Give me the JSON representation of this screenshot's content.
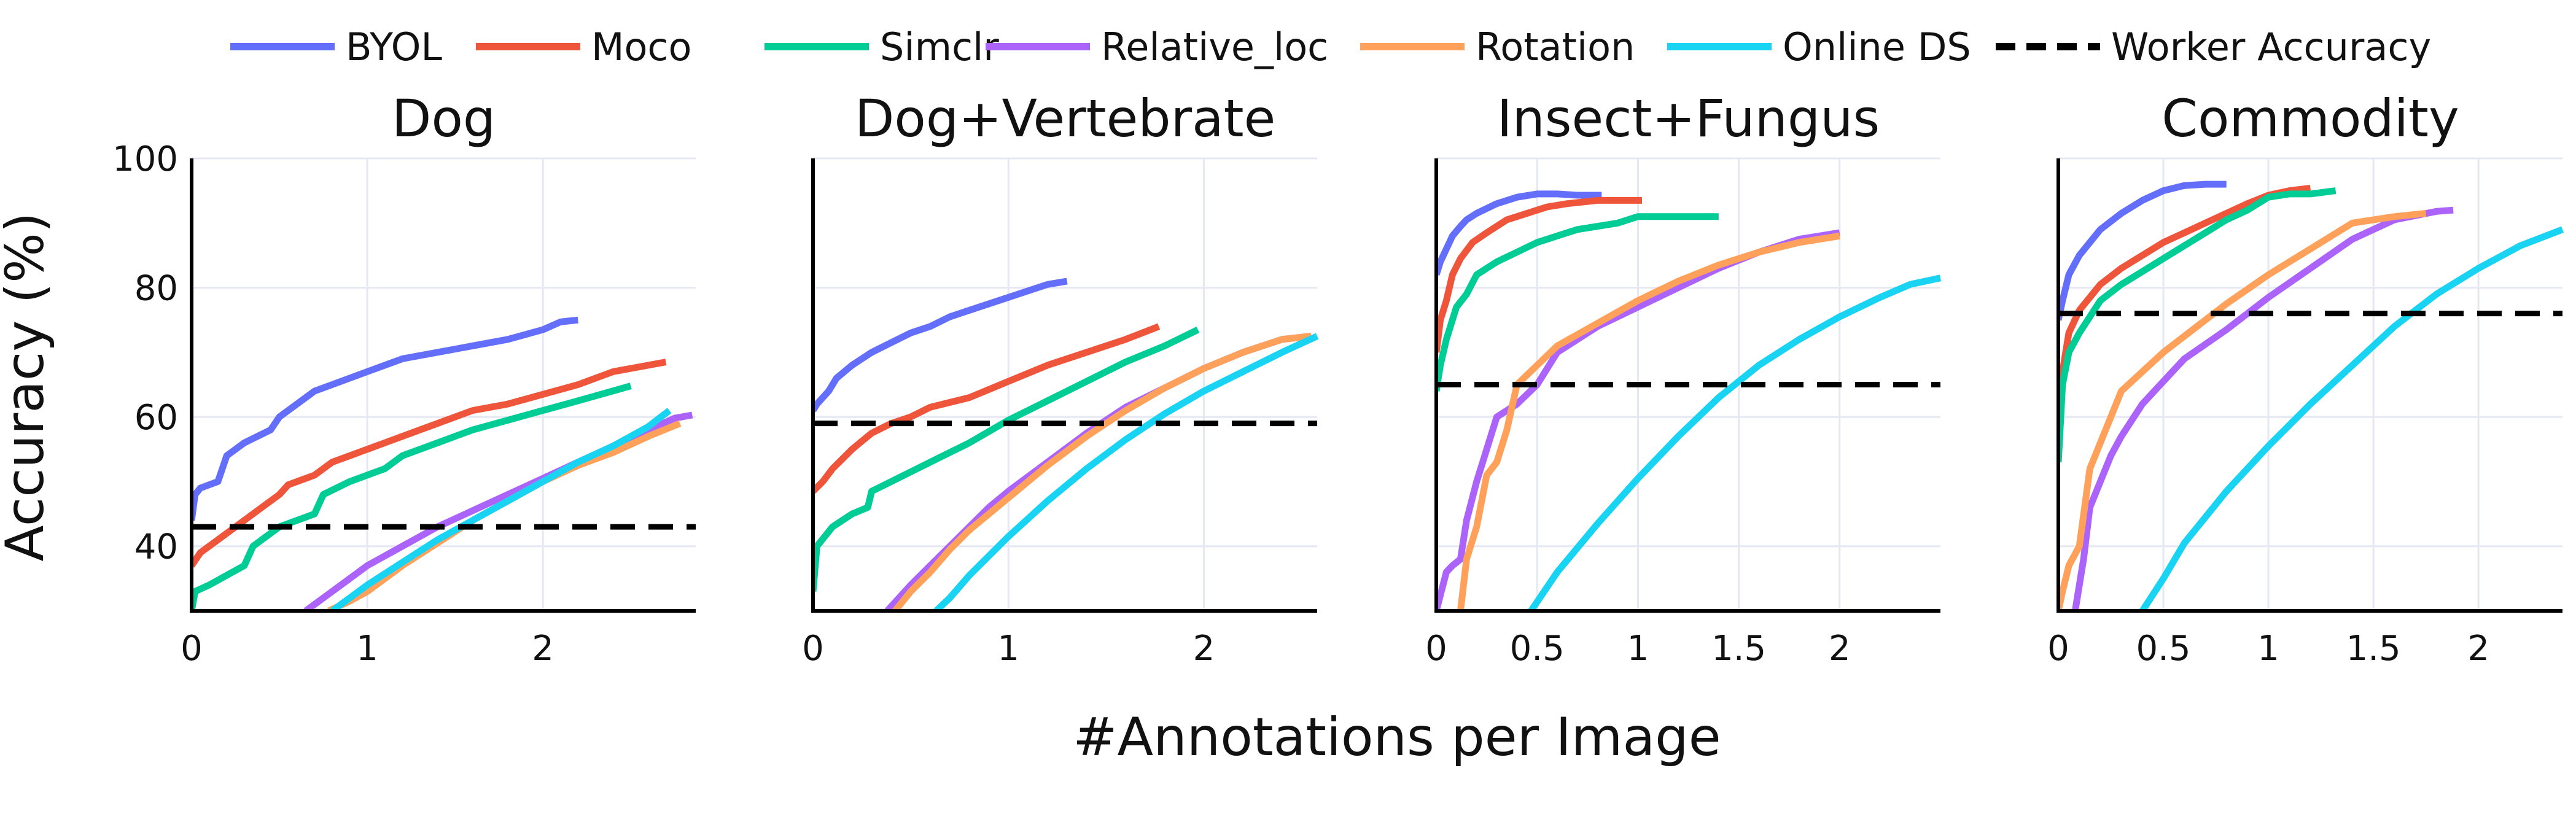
{
  "figure": {
    "ylabel": "Accuracy (%)",
    "xlabel": "#Annotations per Image"
  },
  "legend": [
    {
      "label": "BYOL",
      "color": "#636EFA",
      "dash": false
    },
    {
      "label": "Moco",
      "color": "#EF553B",
      "dash": false
    },
    {
      "label": "Simclr",
      "color": "#00CC96",
      "dash": false
    },
    {
      "label": "Relative_loc",
      "color": "#AB63FA",
      "dash": false
    },
    {
      "label": "Rotation",
      "color": "#FFA15A",
      "dash": false
    },
    {
      "label": "Online DS",
      "color": "#19D3F3",
      "dash": false
    },
    {
      "label": "Worker Accuracy",
      "color": "#000000",
      "dash": true
    }
  ],
  "chart_data": [
    {
      "type": "line",
      "title": "Dog",
      "xlim": [
        0,
        2.87
      ],
      "ylim": [
        30,
        100
      ],
      "xticks": [
        {
          "v": 0,
          "label": "0"
        },
        {
          "v": 1,
          "label": "1"
        },
        {
          "v": 2,
          "label": "2"
        }
      ],
      "yticks": [
        {
          "v": 40,
          "label": "40"
        },
        {
          "v": 60,
          "label": "60"
        },
        {
          "v": 80,
          "label": "80"
        },
        {
          "v": 100,
          "label": "100"
        }
      ],
      "show_ytick_labels": true,
      "worker_accuracy": 43,
      "series": [
        {
          "name": "BYOL",
          "x": [
            0,
            0.02,
            0.05,
            0.15,
            0.2,
            0.3,
            0.45,
            0.5,
            0.6,
            0.7,
            0.8,
            1.0,
            1.2,
            1.5,
            1.8,
            2.0,
            2.1,
            2.2
          ],
          "y": [
            44,
            48,
            49,
            50,
            54,
            56,
            58,
            60,
            62,
            64,
            65,
            67,
            69,
            70.5,
            72,
            73.5,
            74.7,
            75
          ]
        },
        {
          "name": "Moco",
          "x": [
            0,
            0.05,
            0.2,
            0.3,
            0.4,
            0.5,
            0.55,
            0.7,
            0.8,
            1.0,
            1.2,
            1.4,
            1.6,
            1.8,
            2.0,
            2.2,
            2.4,
            2.6,
            2.7
          ],
          "y": [
            37,
            39,
            42,
            44,
            46,
            48,
            49.5,
            51,
            53,
            55,
            57,
            59,
            61,
            62,
            63.5,
            65,
            67,
            68,
            68.5
          ]
        },
        {
          "name": "Simclr",
          "x": [
            0,
            0.02,
            0.1,
            0.3,
            0.35,
            0.5,
            0.7,
            0.75,
            0.9,
            1.1,
            1.2,
            1.4,
            1.6,
            1.8,
            2.0,
            2.2,
            2.5
          ],
          "y": [
            30,
            33,
            34,
            37,
            40,
            43,
            45,
            48,
            50,
            52,
            54,
            56,
            58,
            59.5,
            61,
            62.5,
            64.8
          ]
        },
        {
          "name": "Relative_loc",
          "x": [
            0.65,
            0.8,
            1.0,
            1.2,
            1.4,
            1.6,
            1.8,
            2.0,
            2.2,
            2.4,
            2.6,
            2.75,
            2.85
          ],
          "y": [
            30,
            33,
            37,
            40,
            43,
            45.5,
            48,
            50.5,
            53,
            55.5,
            58,
            59.8,
            60.3
          ]
        },
        {
          "name": "Rotation",
          "x": [
            0.78,
            0.9,
            1.0,
            1.2,
            1.4,
            1.6,
            1.8,
            2.0,
            2.2,
            2.4,
            2.6,
            2.78
          ],
          "y": [
            30,
            31.5,
            33,
            37,
            40.5,
            44,
            47,
            50,
            52.5,
            54.5,
            57,
            59
          ]
        },
        {
          "name": "Online DS",
          "x": [
            0.8,
            1.0,
            1.2,
            1.4,
            1.6,
            1.8,
            2.0,
            2.2,
            2.4,
            2.6,
            2.72
          ],
          "y": [
            30,
            34,
            37.5,
            41,
            44,
            47,
            50,
            53,
            55.5,
            58.5,
            61
          ]
        }
      ]
    },
    {
      "type": "line",
      "title": "Dog+Vertebrate",
      "xlim": [
        0,
        2.58
      ],
      "ylim": [
        30,
        100
      ],
      "xticks": [
        {
          "v": 0,
          "label": "0"
        },
        {
          "v": 1,
          "label": "1"
        },
        {
          "v": 2,
          "label": "2"
        }
      ],
      "yticks": [
        {
          "v": 40,
          "label": ""
        },
        {
          "v": 60,
          "label": ""
        },
        {
          "v": 80,
          "label": ""
        },
        {
          "v": 100,
          "label": ""
        }
      ],
      "show_ytick_labels": false,
      "worker_accuracy": 59,
      "series": [
        {
          "name": "BYOL",
          "x": [
            0,
            0.02,
            0.08,
            0.12,
            0.2,
            0.3,
            0.4,
            0.5,
            0.6,
            0.7,
            0.8,
            0.9,
            1.0,
            1.1,
            1.2,
            1.3
          ],
          "y": [
            61,
            62,
            64,
            66,
            68,
            70,
            71.5,
            73,
            74,
            75.5,
            76.5,
            77.5,
            78.5,
            79.5,
            80.5,
            81
          ]
        },
        {
          "name": "Moco",
          "x": [
            0,
            0.05,
            0.1,
            0.2,
            0.3,
            0.4,
            0.5,
            0.6,
            0.8,
            1.0,
            1.2,
            1.4,
            1.6,
            1.77
          ],
          "y": [
            48.5,
            50,
            52,
            55,
            57.5,
            59,
            60,
            61.5,
            63,
            65.5,
            68,
            70,
            72,
            74
          ]
        },
        {
          "name": "Simclr",
          "x": [
            0,
            0.02,
            0.1,
            0.2,
            0.28,
            0.3,
            0.4,
            0.5,
            0.6,
            0.8,
            1.0,
            1.2,
            1.4,
            1.6,
            1.8,
            1.97
          ],
          "y": [
            33,
            40,
            43,
            45,
            46,
            48.5,
            50,
            51.5,
            53,
            56,
            59.5,
            62.5,
            65.5,
            68.5,
            71,
            73.5
          ]
        },
        {
          "name": "Relative_loc",
          "x": [
            0.38,
            0.5,
            0.6,
            0.7,
            0.8,
            0.9,
            1.0,
            1.2,
            1.4,
            1.6,
            1.8,
            2.0,
            2.2,
            2.4,
            2.55
          ],
          "y": [
            30,
            34,
            37,
            40,
            43,
            46,
            48.5,
            53,
            57.5,
            61.5,
            64.5,
            67.5,
            70,
            72,
            72.5
          ]
        },
        {
          "name": "Rotation",
          "x": [
            0.42,
            0.5,
            0.6,
            0.7,
            0.8,
            0.9,
            1.0,
            1.2,
            1.4,
            1.6,
            1.8,
            2.0,
            2.2,
            2.4,
            2.55
          ],
          "y": [
            30,
            33,
            36,
            39.5,
            42.5,
            45,
            47.5,
            52.5,
            57,
            61,
            64.5,
            67.5,
            70,
            72,
            72.5
          ]
        },
        {
          "name": "Online DS",
          "x": [
            0.63,
            0.7,
            0.8,
            0.9,
            1.0,
            1.2,
            1.4,
            1.6,
            1.8,
            2.0,
            2.2,
            2.4,
            2.58
          ],
          "y": [
            30,
            32,
            35.5,
            38.5,
            41.5,
            47,
            52,
            56.5,
            60.5,
            64,
            67,
            70,
            72.5
          ]
        }
      ]
    },
    {
      "type": "line",
      "title": "Insect+Fungus",
      "xlim": [
        0,
        2.5
      ],
      "ylim": [
        30,
        100
      ],
      "xticks": [
        {
          "v": 0,
          "label": "0"
        },
        {
          "v": 0.5,
          "label": "0.5"
        },
        {
          "v": 1,
          "label": "1"
        },
        {
          "v": 1.5,
          "label": "1.5"
        },
        {
          "v": 2,
          "label": "2"
        }
      ],
      "yticks": [
        {
          "v": 40,
          "label": ""
        },
        {
          "v": 60,
          "label": ""
        },
        {
          "v": 80,
          "label": ""
        },
        {
          "v": 100,
          "label": ""
        }
      ],
      "show_ytick_labels": false,
      "worker_accuracy": 65,
      "series": [
        {
          "name": "BYOL",
          "x": [
            0,
            0.02,
            0.05,
            0.08,
            0.12,
            0.15,
            0.2,
            0.3,
            0.4,
            0.5,
            0.6,
            0.7,
            0.82
          ],
          "y": [
            82,
            84,
            86,
            88,
            89.5,
            90.5,
            91.5,
            93,
            94,
            94.5,
            94.5,
            94.3,
            94.3
          ]
        },
        {
          "name": "Moco",
          "x": [
            0,
            0.02,
            0.05,
            0.08,
            0.12,
            0.18,
            0.25,
            0.35,
            0.45,
            0.55,
            0.65,
            0.8,
            0.9,
            1.02
          ],
          "y": [
            70,
            75,
            78,
            82,
            84.5,
            87,
            88.5,
            90.5,
            91.5,
            92.5,
            93,
            93.5,
            93.5,
            93.5
          ]
        },
        {
          "name": "Simclr",
          "x": [
            0,
            0.02,
            0.05,
            0.1,
            0.15,
            0.2,
            0.3,
            0.4,
            0.5,
            0.6,
            0.7,
            0.8,
            0.9,
            1.0,
            1.2,
            1.4
          ],
          "y": [
            64,
            68,
            72,
            77,
            79,
            82,
            84,
            85.5,
            87,
            88,
            89,
            89.5,
            90,
            91,
            91,
            91
          ]
        },
        {
          "name": "Relative_loc",
          "x": [
            0,
            0.05,
            0.08,
            0.12,
            0.15,
            0.2,
            0.25,
            0.3,
            0.4,
            0.5,
            0.6,
            0.8,
            1.0,
            1.2,
            1.4,
            1.6,
            1.8,
            2.0
          ],
          "y": [
            30,
            36,
            37,
            38,
            44,
            50,
            55,
            60,
            62,
            65,
            70,
            74,
            77,
            80,
            83,
            85.5,
            87.5,
            88.5
          ]
        },
        {
          "name": "Rotation",
          "x": [
            0.12,
            0.15,
            0.2,
            0.25,
            0.3,
            0.35,
            0.4,
            0.5,
            0.6,
            0.8,
            1.0,
            1.2,
            1.4,
            1.6,
            1.8,
            2.0
          ],
          "y": [
            30,
            38,
            43,
            51,
            53,
            58,
            65,
            68,
            71,
            74.5,
            78,
            81,
            83.5,
            85.5,
            87,
            88
          ]
        },
        {
          "name": "Online DS",
          "x": [
            0.47,
            0.6,
            0.8,
            1.0,
            1.2,
            1.4,
            1.6,
            1.8,
            2.0,
            2.2,
            2.35,
            2.5
          ],
          "y": [
            30,
            36,
            43.5,
            50.5,
            57,
            63,
            68,
            72,
            75.5,
            78.5,
            80.5,
            81.5
          ]
        }
      ]
    },
    {
      "type": "line",
      "title": "Commodity",
      "xlim": [
        0,
        2.4
      ],
      "ylim": [
        30,
        100
      ],
      "xticks": [
        {
          "v": 0,
          "label": "0"
        },
        {
          "v": 0.5,
          "label": "0.5"
        },
        {
          "v": 1,
          "label": "1"
        },
        {
          "v": 1.5,
          "label": "1.5"
        },
        {
          "v": 2,
          "label": "2"
        }
      ],
      "yticks": [
        {
          "v": 40,
          "label": ""
        },
        {
          "v": 60,
          "label": ""
        },
        {
          "v": 80,
          "label": ""
        },
        {
          "v": 100,
          "label": ""
        }
      ],
      "show_ytick_labels": false,
      "worker_accuracy": 76,
      "series": [
        {
          "name": "BYOL",
          "x": [
            0,
            0.02,
            0.05,
            0.1,
            0.15,
            0.2,
            0.3,
            0.4,
            0.5,
            0.6,
            0.7,
            0.8
          ],
          "y": [
            75,
            78,
            82,
            85,
            87,
            89,
            91.5,
            93.5,
            95,
            95.8,
            96,
            96
          ]
        },
        {
          "name": "Moco",
          "x": [
            0,
            0.02,
            0.05,
            0.1,
            0.15,
            0.2,
            0.3,
            0.4,
            0.5,
            0.6,
            0.7,
            0.8,
            0.9,
            1.0,
            1.1,
            1.2
          ],
          "y": [
            63,
            67,
            73,
            76.5,
            78.5,
            80.5,
            83,
            85,
            87,
            88.5,
            90,
            91.5,
            93,
            94.3,
            95,
            95.4
          ]
        },
        {
          "name": "Simclr",
          "x": [
            0,
            0.02,
            0.05,
            0.1,
            0.15,
            0.2,
            0.3,
            0.4,
            0.5,
            0.6,
            0.7,
            0.8,
            0.9,
            1.0,
            1.1,
            1.2,
            1.32
          ],
          "y": [
            53,
            65,
            70,
            73,
            75.5,
            78,
            80.5,
            82.5,
            84.5,
            86.5,
            88.5,
            90.5,
            92,
            94,
            94.5,
            94.5,
            95
          ]
        },
        {
          "name": "Relative_loc",
          "x": [
            0.08,
            0.1,
            0.12,
            0.15,
            0.2,
            0.25,
            0.3,
            0.4,
            0.5,
            0.6,
            0.8,
            1.0,
            1.2,
            1.4,
            1.6,
            1.8,
            1.88
          ],
          "y": [
            30,
            34,
            38,
            46,
            50,
            54,
            57,
            62,
            65.5,
            69,
            73.5,
            78.5,
            83,
            87.5,
            90.5,
            91.8,
            92
          ]
        },
        {
          "name": "Rotation",
          "x": [
            0,
            0.02,
            0.05,
            0.1,
            0.15,
            0.2,
            0.3,
            0.4,
            0.5,
            0.6,
            0.8,
            1.0,
            1.2,
            1.4,
            1.6,
            1.75
          ],
          "y": [
            30,
            33,
            37,
            40,
            52,
            56,
            64,
            67,
            70,
            72.5,
            77.5,
            82,
            86,
            90,
            91,
            91.5
          ]
        },
        {
          "name": "Online DS",
          "x": [
            0.4,
            0.5,
            0.6,
            0.8,
            1.0,
            1.2,
            1.4,
            1.6,
            1.8,
            2.0,
            2.2,
            2.4
          ],
          "y": [
            30,
            35,
            40.5,
            48.5,
            55.5,
            62,
            68,
            74,
            79,
            83,
            86.5,
            89
          ]
        }
      ]
    }
  ]
}
